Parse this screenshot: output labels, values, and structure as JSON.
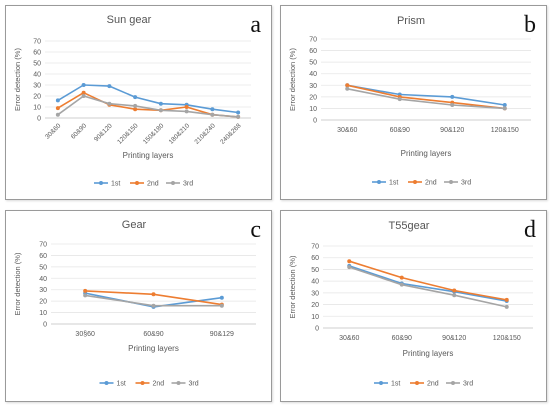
{
  "series_colors": {
    "1st": "#5b9bd5",
    "2nd": "#ed7d31",
    "3rd": "#a5a5a5"
  },
  "chart_data": [
    {
      "type": "line",
      "panel_letter": "a",
      "title": "Sun gear",
      "xlabel": "Printing layers",
      "ylabel": "Error detection (%)",
      "ylim": [
        0,
        70
      ],
      "yticks": [
        0,
        10,
        20,
        30,
        40,
        50,
        60,
        70
      ],
      "categories": [
        "30&60",
        "60&90",
        "90&120",
        "120&150",
        "150&180",
        "180&210",
        "210&240",
        "240&268"
      ],
      "legend_position": "bottom",
      "series": [
        {
          "name": "1st",
          "values": [
            16,
            30,
            29,
            19,
            13,
            12,
            8,
            5
          ]
        },
        {
          "name": "2nd",
          "values": [
            9,
            23,
            12,
            8,
            7,
            10,
            3,
            1
          ]
        },
        {
          "name": "3rd",
          "values": [
            3,
            20,
            13,
            11,
            7,
            6,
            3,
            1
          ]
        }
      ]
    },
    {
      "type": "line",
      "panel_letter": "b",
      "title": "Prism",
      "xlabel": "Printing layers",
      "ylabel": "Error detection (%)",
      "ylim": [
        0,
        70
      ],
      "yticks": [
        0,
        10,
        20,
        30,
        40,
        50,
        60,
        70
      ],
      "categories": [
        "30&60",
        "60&90",
        "90&120",
        "120&150"
      ],
      "legend_position": "bottom",
      "series": [
        {
          "name": "1st",
          "values": [
            30,
            22,
            20,
            13
          ]
        },
        {
          "name": "2nd",
          "values": [
            30,
            20,
            15,
            10
          ]
        },
        {
          "name": "3rd",
          "values": [
            27,
            18,
            13,
            10
          ]
        }
      ]
    },
    {
      "type": "line",
      "panel_letter": "c",
      "title": "Gear",
      "xlabel": "Printing layers",
      "ylabel": "Error detection (%)",
      "ylim": [
        0,
        70
      ],
      "yticks": [
        0,
        10,
        20,
        30,
        40,
        50,
        60,
        70
      ],
      "categories": [
        "30§60",
        "60&90",
        "90&129"
      ],
      "legend_position": "bottom",
      "series": [
        {
          "name": "1st",
          "values": [
            27,
            15,
            23
          ]
        },
        {
          "name": "2nd",
          "values": [
            29,
            26,
            17
          ]
        },
        {
          "name": "3rd",
          "values": [
            25,
            16,
            16
          ]
        }
      ]
    },
    {
      "type": "line",
      "panel_letter": "d",
      "title": "T55gear",
      "xlabel": "Printing layers",
      "ylabel": "Error detection (%)",
      "ylim": [
        0,
        70
      ],
      "yticks": [
        0,
        10,
        20,
        30,
        40,
        50,
        60,
        70
      ],
      "categories": [
        "30&60",
        "60&90",
        "90&120",
        "120&150"
      ],
      "legend_position": "bottom",
      "series": [
        {
          "name": "1st",
          "values": [
            53,
            38,
            31,
            23
          ]
        },
        {
          "name": "2nd",
          "values": [
            57,
            43,
            32,
            24
          ]
        },
        {
          "name": "3rd",
          "values": [
            52,
            37,
            28,
            18
          ]
        }
      ]
    }
  ]
}
